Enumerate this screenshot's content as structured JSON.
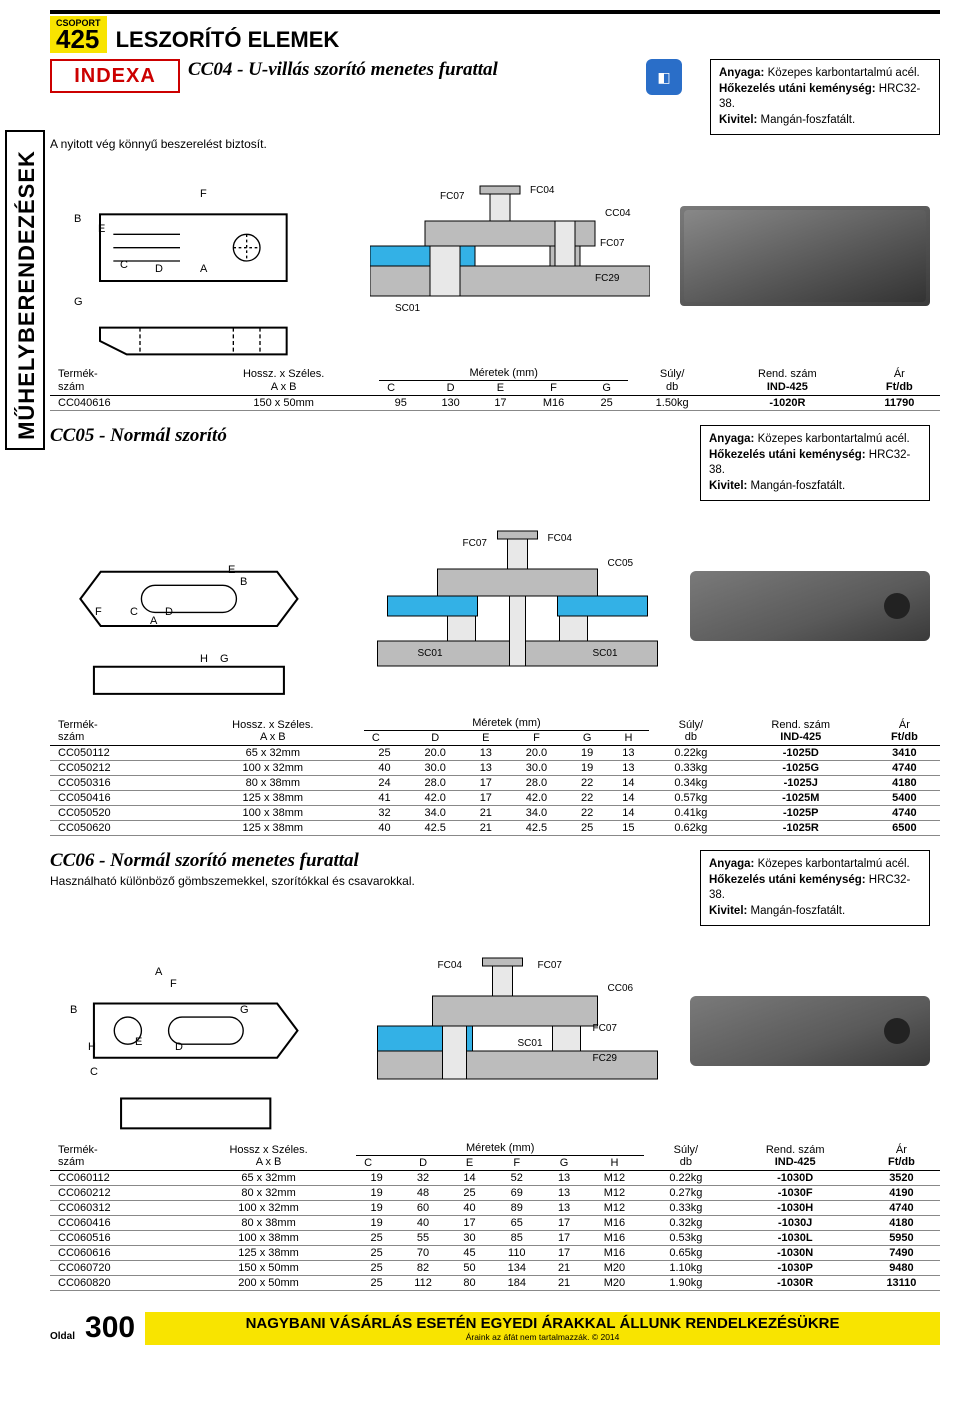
{
  "group": {
    "label": "CSOPORT",
    "number": "425"
  },
  "page_title": "LESZORÍTÓ ELEMEK",
  "side_tab": "MŰHELYBERENDEZÉSEK",
  "brand": "INDEXA",
  "blue_icon": "◧",
  "spec": {
    "material_label": "Anyaga:",
    "material_val": "Közepes karbontartalmú acél.",
    "hardness_label": "Hőkezelés utáni keménység:",
    "hardness_val": "HRC32-38.",
    "finish_label": "Kivitel:",
    "finish_val": "Mangán-foszfatált."
  },
  "headers": {
    "product": "Termék-\nszám",
    "size": "Hossz. x Széles.\nA x B",
    "size2": "Hossz x Széles.\nA x B",
    "dims": "Méretek (mm)",
    "weight": "Súly/\ndb",
    "order": "Rend. szám\nIND-425",
    "price": "Ár\nFt/db",
    "C": "C",
    "D": "D",
    "E": "E",
    "F": "F",
    "G": "G",
    "H": "H"
  },
  "cc04": {
    "title": "CC04 - U-villás szorító menetes furattal",
    "subtitle": "A nyitott vég könnyű beszerelést biztosít.",
    "labels": [
      "F",
      "B",
      "E",
      "C",
      "D",
      "A",
      "G",
      "FC07",
      "FC04",
      "CC04",
      "FC07",
      "SC01",
      "FC29"
    ],
    "rows": [
      {
        "id": "CC040616",
        "ab": "150 x 50mm",
        "C": "95",
        "D": "130",
        "E": "17",
        "F": "M16",
        "G": "25",
        "wt": "1.50kg",
        "ord": "-1020R",
        "price": "11790"
      }
    ]
  },
  "cc05": {
    "title": "CC05 - Normál szorító",
    "labels": [
      "E",
      "B",
      "F",
      "C",
      "D",
      "A",
      "H",
      "G",
      "FC07",
      "FC04",
      "CC05",
      "SC01",
      "SC01"
    ],
    "rows": [
      {
        "id": "CC050112",
        "ab": "65 x 32mm",
        "C": "25",
        "D": "20.0",
        "E": "13",
        "F": "20.0",
        "G": "19",
        "H": "13",
        "wt": "0.22kg",
        "ord": "-1025D",
        "price": "3410"
      },
      {
        "id": "CC050212",
        "ab": "100 x 32mm",
        "C": "40",
        "D": "30.0",
        "E": "13",
        "F": "30.0",
        "G": "19",
        "H": "13",
        "wt": "0.33kg",
        "ord": "-1025G",
        "price": "4740"
      },
      {
        "id": "CC050316",
        "ab": "80 x 38mm",
        "C": "24",
        "D": "28.0",
        "E": "17",
        "F": "28.0",
        "G": "22",
        "H": "14",
        "wt": "0.34kg",
        "ord": "-1025J",
        "price": "4180"
      },
      {
        "id": "CC050416",
        "ab": "125 x 38mm",
        "C": "41",
        "D": "42.0",
        "E": "17",
        "F": "42.0",
        "G": "22",
        "H": "14",
        "wt": "0.57kg",
        "ord": "-1025M",
        "price": "5400"
      },
      {
        "id": "CC050520",
        "ab": "100 x 38mm",
        "C": "32",
        "D": "34.0",
        "E": "21",
        "F": "34.0",
        "G": "22",
        "H": "14",
        "wt": "0.41kg",
        "ord": "-1025P",
        "price": "4740"
      },
      {
        "id": "CC050620",
        "ab": "125 x 38mm",
        "C": "40",
        "D": "42.5",
        "E": "21",
        "F": "42.5",
        "G": "25",
        "H": "15",
        "wt": "0.62kg",
        "ord": "-1025R",
        "price": "6500"
      }
    ]
  },
  "cc06": {
    "title": "CC06 - Normál szorító menetes furattal",
    "subtitle": "Használható különböző gömbszemekkel, szorítókkal és csavarokkal.",
    "labels": [
      "A",
      "F",
      "B",
      "G",
      "E",
      "D",
      "H",
      "C",
      "FC04",
      "FC07",
      "CC06",
      "SC01",
      "FC07",
      "FC29"
    ],
    "rows": [
      {
        "id": "CC060112",
        "ab": "65 x 32mm",
        "C": "19",
        "D": "32",
        "E": "14",
        "F": "52",
        "G": "13",
        "H": "M12",
        "wt": "0.22kg",
        "ord": "-1030D",
        "price": "3520"
      },
      {
        "id": "CC060212",
        "ab": "80 x 32mm",
        "C": "19",
        "D": "48",
        "E": "25",
        "F": "69",
        "G": "13",
        "H": "M12",
        "wt": "0.27kg",
        "ord": "-1030F",
        "price": "4190"
      },
      {
        "id": "CC060312",
        "ab": "100 x 32mm",
        "C": "19",
        "D": "60",
        "E": "40",
        "F": "89",
        "G": "13",
        "H": "M12",
        "wt": "0.33kg",
        "ord": "-1030H",
        "price": "4740"
      },
      {
        "id": "CC060416",
        "ab": "80 x 38mm",
        "C": "19",
        "D": "40",
        "E": "17",
        "F": "65",
        "G": "17",
        "H": "M16",
        "wt": "0.32kg",
        "ord": "-1030J",
        "price": "4180"
      },
      {
        "id": "CC060516",
        "ab": "100 x 38mm",
        "C": "25",
        "D": "55",
        "E": "30",
        "F": "85",
        "G": "17",
        "H": "M16",
        "wt": "0.53kg",
        "ord": "-1030L",
        "price": "5950"
      },
      {
        "id": "CC060616",
        "ab": "125 x 38mm",
        "C": "25",
        "D": "70",
        "E": "45",
        "F": "110",
        "G": "17",
        "H": "M16",
        "wt": "0.65kg",
        "ord": "-1030N",
        "price": "7490"
      },
      {
        "id": "CC060720",
        "ab": "150 x 50mm",
        "C": "25",
        "D": "82",
        "E": "50",
        "F": "134",
        "G": "21",
        "H": "M20",
        "wt": "1.10kg",
        "ord": "-1030P",
        "price": "9480"
      },
      {
        "id": "CC060820",
        "ab": "200 x 50mm",
        "C": "25",
        "D": "112",
        "E": "80",
        "F": "184",
        "G": "21",
        "H": "M20",
        "wt": "1.90kg",
        "ord": "-1030R",
        "price": "13110"
      }
    ]
  },
  "footer": {
    "page_label": "Oldal",
    "page_num": "300",
    "banner_big": "NAGYBANI VÁSÁRLÁS ESETÉN EGYEDI ÁRAKKAL ÁLLUNK RENDELKEZÉSÜKRE",
    "banner_small": "Áraink az áfát nem tartalmazzák. © 2014"
  },
  "svg_colors": {
    "stroke": "#000",
    "fill_grey": "#bcbcbc",
    "fill_blue": "#33b1e6",
    "fill_light": "#e8e8e8",
    "hatch": "#888"
  }
}
